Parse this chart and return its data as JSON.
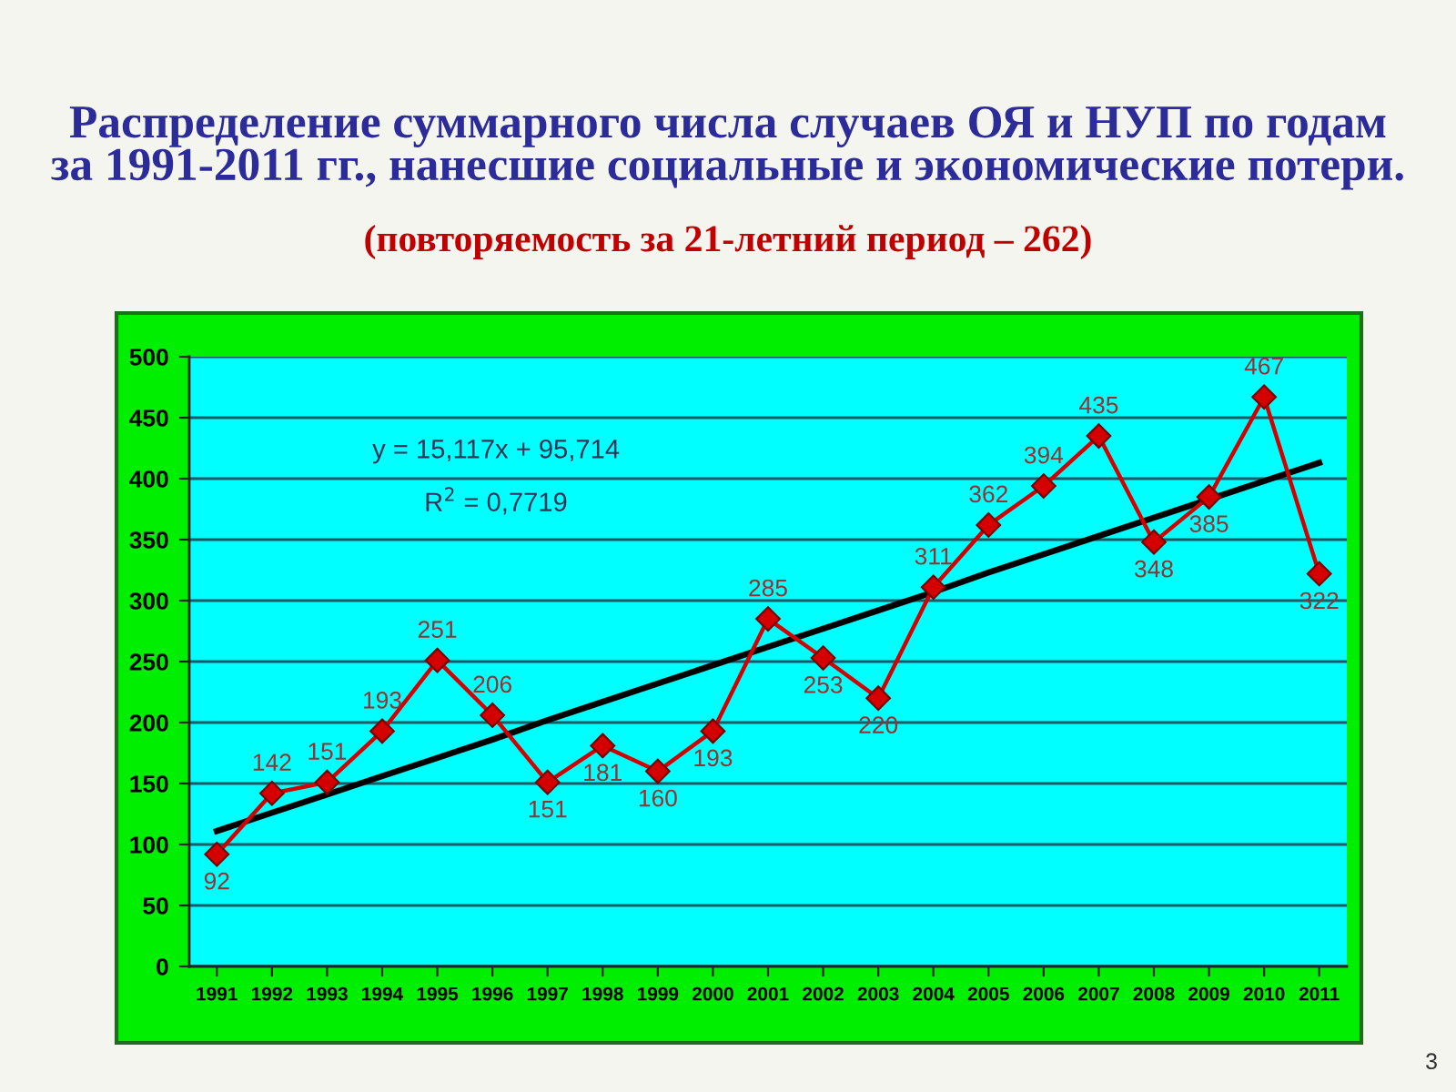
{
  "chart_data": {
    "type": "line",
    "title": "Распределение суммарного числа случаев ОЯ и НУП по годам\nза 1991-2011 гг., нанесшие социальные и экономические потери.",
    "subtitle": "(повторяемость за 21-летний период – 262)",
    "categories": [
      "1991",
      "1992",
      "1993",
      "1994",
      "1995",
      "1996",
      "1997",
      "1998",
      "1999",
      "2000",
      "2001",
      "2002",
      "2003",
      "2004",
      "2005",
      "2006",
      "2007",
      "2008",
      "2009",
      "2010",
      "2011"
    ],
    "series": [
      {
        "color": "#d40000",
        "values": [
          92,
          142,
          151,
          193,
          251,
          206,
          151,
          181,
          160,
          193,
          285,
          253,
          220,
          311,
          362,
          394,
          435,
          348,
          385,
          467,
          322
        ]
      },
      {
        "type": "line",
        "color": "#000000",
        "marker": "none",
        "values": [
          111,
          126,
          141,
          156,
          171,
          186,
          202,
          217,
          232,
          247,
          262,
          277,
          292,
          307,
          323,
          338,
          353,
          368,
          383,
          398,
          413
        ],
        "value_labels": [
          null,
          null,
          null,
          null,
          null,
          null,
          null,
          null,
          null,
          null,
          null,
          null,
          null,
          null,
          null,
          null,
          null,
          null,
          null,
          null,
          null
        ]
      }
    ],
    "ylim": [
      0,
      500
    ],
    "yticks": [
      0,
      50,
      100,
      150,
      200,
      250,
      300,
      350,
      400,
      450,
      500
    ],
    "grid": "y",
    "marker": "diamond",
    "line_style": "solid",
    "data_labels": true,
    "annotations": [
      "y = 15,117x + 95,714",
      "R$^{2}$ = 0,7719",
      "3"
    ]
  }
}
